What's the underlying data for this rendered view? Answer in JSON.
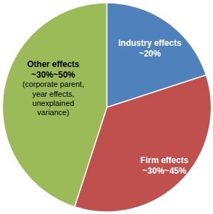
{
  "chart_data": {
    "type": "pie",
    "categories": [
      "Industry effects",
      "Firm effects",
      "Other effects"
    ],
    "values": [
      20,
      35,
      45
    ],
    "value_labels": [
      "~20%",
      "~30%~45%",
      "~30%~50%"
    ],
    "colors": [
      "#4f81bd",
      "#c0504d",
      "#9bbb59"
    ],
    "data_labels": true,
    "annotations": [
      {
        "category": "Other effects",
        "text": "(corporate parent, year effects, unexplained variance)"
      }
    ]
  }
}
